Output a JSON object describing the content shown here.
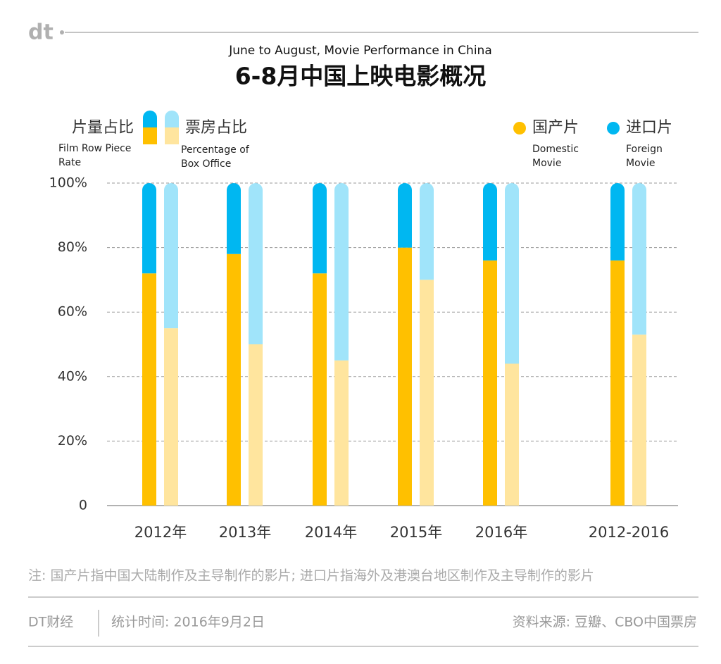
{
  "chart_data": {
    "type": "stacked_bar",
    "logo": "dt",
    "subtitle": "June to August, Movie Performance in China",
    "title": "6-8月中国上映电影概况",
    "categories": [
      "2012年",
      "2013年",
      "2014年",
      "2015年",
      "2016年",
      "2012-2016"
    ],
    "stacks": [
      {
        "label": "片量占比",
        "sublabel": "Film Row Piece Rate",
        "series": [
          {
            "name": "国产片",
            "sublabel": "Domestic Movie",
            "color": "#ffc000",
            "values": [
              72,
              78,
              72,
              80,
              76,
              76
            ]
          },
          {
            "name": "进口片",
            "sublabel": "Foreign Movie",
            "color": "#00b7f1",
            "values": [
              28,
              22,
              28,
              20,
              24,
              24
            ]
          }
        ]
      },
      {
        "label": "票房占比",
        "sublabel": "Percentage of Box Office",
        "series": [
          {
            "color": "#ffe59e",
            "values": [
              55,
              50,
              45,
              70,
              44,
              53
            ]
          },
          {
            "color": "#a0e4fa",
            "values": [
              45,
              50,
              55,
              30,
              56,
              47
            ]
          }
        ]
      }
    ],
    "ylim": [
      0,
      100
    ],
    "yticks": [
      0,
      {
        "value": 20,
        "label": "20%"
      },
      {
        "value": 40,
        "label": "40%"
      },
      {
        "value": 60,
        "label": "60%"
      },
      {
        "value": 80,
        "label": "80%"
      },
      {
        "value": 100,
        "label": "100%"
      }
    ],
    "grid": true,
    "note": "注: 国产片指中国大陆制作及主导制作的影片; 进口片指海外及港澳台地区制作及主导制作的影片",
    "footer": {
      "brand": "DT财经",
      "date": "统计时间: 2016年9月2日",
      "source": "资料来源: 豆瓣、CBO中国票房"
    }
  }
}
